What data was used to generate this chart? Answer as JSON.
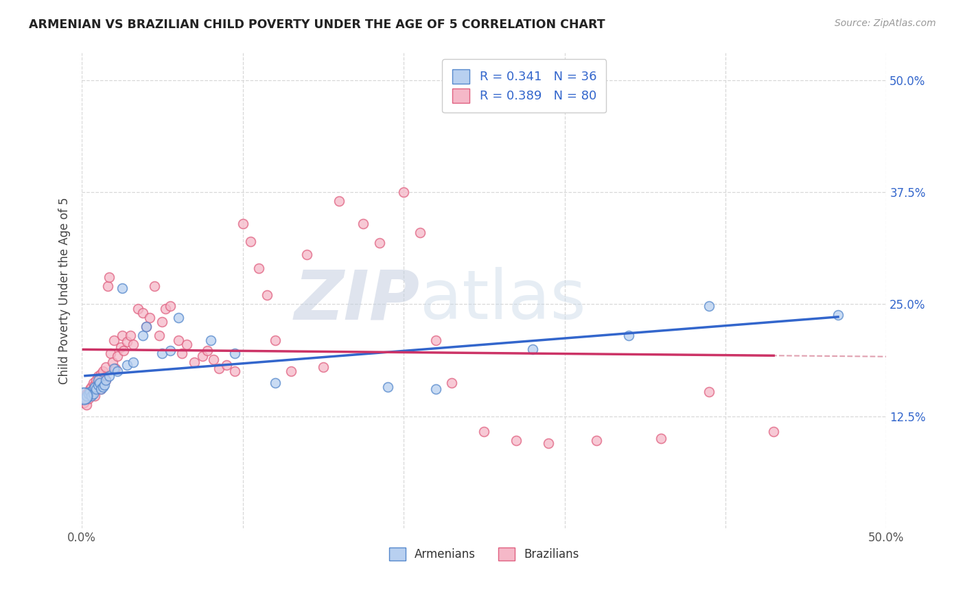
{
  "title": "ARMENIAN VS BRAZILIAN CHILD POVERTY UNDER THE AGE OF 5 CORRELATION CHART",
  "source": "Source: ZipAtlas.com",
  "ylabel": "Child Poverty Under the Age of 5",
  "xlim": [
    0.0,
    0.5
  ],
  "ylim": [
    0.0,
    0.53
  ],
  "x_ticks": [
    0.0,
    0.1,
    0.2,
    0.3,
    0.4,
    0.5
  ],
  "x_tick_labels": [
    "0.0%",
    "",
    "",
    "",
    "",
    "50.0%"
  ],
  "y_ticks": [
    0.125,
    0.25,
    0.375,
    0.5
  ],
  "y_tick_labels": [
    "12.5%",
    "25.0%",
    "37.5%",
    "50.0%"
  ],
  "armenian_color": "#b8d0f0",
  "armenian_edge": "#5588cc",
  "brazilian_color": "#f5b8c8",
  "brazilian_edge": "#e06080",
  "trendline_armenian_color": "#3366cc",
  "trendline_brazilian_color": "#cc3366",
  "trendline_dash_color": "#e0a0b0",
  "background_color": "#ffffff",
  "grid_color": "#d8d8d8",
  "R_armenian": 0.341,
  "N_armenian": 36,
  "R_brazilian": 0.389,
  "N_brazilian": 80,
  "armenian_x": [
    0.002,
    0.003,
    0.004,
    0.005,
    0.006,
    0.007,
    0.007,
    0.008,
    0.009,
    0.01,
    0.01,
    0.011,
    0.012,
    0.013,
    0.014,
    0.015,
    0.017,
    0.02,
    0.022,
    0.025,
    0.028,
    0.032,
    0.038,
    0.04,
    0.05,
    0.055,
    0.06,
    0.08,
    0.095,
    0.12,
    0.19,
    0.22,
    0.28,
    0.34,
    0.39,
    0.47
  ],
  "armenian_y": [
    0.145,
    0.148,
    0.15,
    0.152,
    0.148,
    0.155,
    0.15,
    0.158,
    0.155,
    0.16,
    0.165,
    0.162,
    0.155,
    0.158,
    0.16,
    0.165,
    0.17,
    0.178,
    0.175,
    0.268,
    0.182,
    0.185,
    0.215,
    0.225,
    0.195,
    0.198,
    0.235,
    0.21,
    0.195,
    0.162,
    0.158,
    0.155,
    0.2,
    0.215,
    0.248,
    0.238
  ],
  "brazilian_x": [
    0.001,
    0.002,
    0.003,
    0.003,
    0.004,
    0.004,
    0.005,
    0.005,
    0.006,
    0.006,
    0.007,
    0.007,
    0.008,
    0.008,
    0.009,
    0.009,
    0.01,
    0.01,
    0.011,
    0.011,
    0.012,
    0.012,
    0.013,
    0.014,
    0.015,
    0.015,
    0.016,
    0.017,
    0.018,
    0.019,
    0.02,
    0.021,
    0.022,
    0.024,
    0.025,
    0.026,
    0.028,
    0.03,
    0.032,
    0.035,
    0.038,
    0.04,
    0.042,
    0.045,
    0.048,
    0.05,
    0.052,
    0.055,
    0.06,
    0.062,
    0.065,
    0.07,
    0.075,
    0.078,
    0.082,
    0.085,
    0.09,
    0.095,
    0.1,
    0.105,
    0.11,
    0.115,
    0.12,
    0.13,
    0.14,
    0.15,
    0.16,
    0.175,
    0.185,
    0.2,
    0.21,
    0.22,
    0.23,
    0.25,
    0.27,
    0.29,
    0.32,
    0.36,
    0.39,
    0.43
  ],
  "brazilian_y": [
    0.14,
    0.145,
    0.138,
    0.15,
    0.145,
    0.152,
    0.148,
    0.155,
    0.15,
    0.158,
    0.155,
    0.162,
    0.16,
    0.148,
    0.165,
    0.158,
    0.162,
    0.17,
    0.168,
    0.16,
    0.155,
    0.172,
    0.175,
    0.168,
    0.18,
    0.165,
    0.27,
    0.28,
    0.195,
    0.185,
    0.21,
    0.178,
    0.192,
    0.202,
    0.215,
    0.198,
    0.208,
    0.215,
    0.205,
    0.245,
    0.24,
    0.225,
    0.235,
    0.27,
    0.215,
    0.23,
    0.245,
    0.248,
    0.21,
    0.195,
    0.205,
    0.185,
    0.192,
    0.198,
    0.188,
    0.178,
    0.182,
    0.175,
    0.34,
    0.32,
    0.29,
    0.26,
    0.21,
    0.175,
    0.305,
    0.18,
    0.365,
    0.34,
    0.318,
    0.375,
    0.33,
    0.21,
    0.162,
    0.108,
    0.098,
    0.095,
    0.098,
    0.1,
    0.152,
    0.108
  ],
  "watermark_zip": "ZIP",
  "watermark_atlas": "atlas",
  "watermark_color": "#d0d8e8",
  "legend_label_arm": "R = 0.341   N = 36",
  "legend_label_bra": "R = 0.389   N = 80",
  "bottom_label_arm": "Armenians",
  "bottom_label_bra": "Brazilians"
}
